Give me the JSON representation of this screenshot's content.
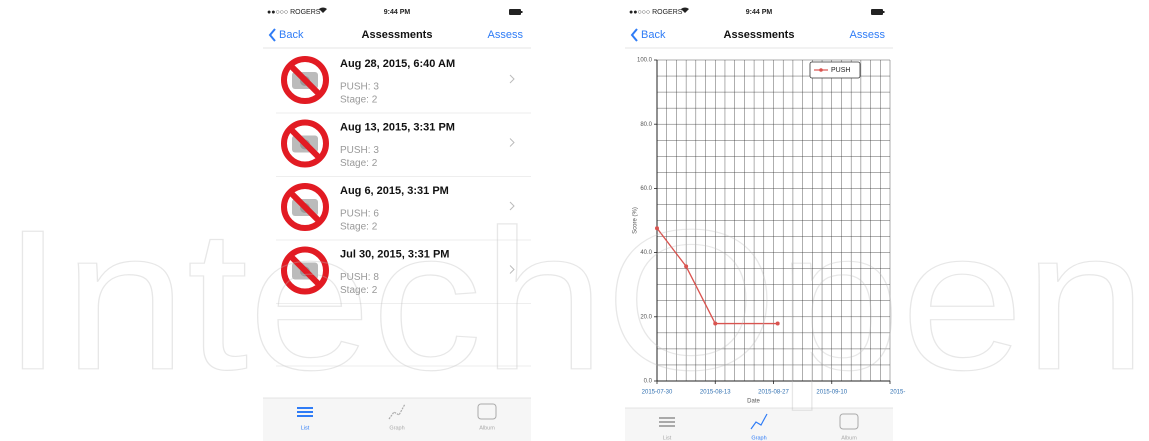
{
  "watermark": "IntechOpen",
  "left_screen": {
    "status": {
      "carrier": "●●○○○ ROGERS",
      "time": "9:44 PM"
    },
    "nav": {
      "back": "Back",
      "title": "Assessments",
      "action": "Assess"
    },
    "items": [
      {
        "date": "Aug 28, 2015, 6:40 AM",
        "score": "PUSH: 3",
        "stage": "Stage: 2"
      },
      {
        "date": "Aug 13, 2015, 3:31 PM",
        "score": "PUSH: 3",
        "stage": "Stage: 2"
      },
      {
        "date": "Aug 6, 2015, 3:31 PM",
        "score": "PUSH: 6",
        "stage": "Stage: 2"
      },
      {
        "date": "Jul 30, 2015, 3:31 PM",
        "score": "PUSH: 8",
        "stage": "Stage: 2"
      }
    ],
    "tabs": [
      "List",
      "Graph",
      "Album"
    ]
  },
  "right_screen": {
    "status": {
      "carrier": "●●○○○ ROGERS",
      "time": "9:44 PM"
    },
    "nav": {
      "back": "Back",
      "title": "Assessments",
      "action": "Assess"
    },
    "tabs": [
      "List",
      "Graph",
      "Album"
    ]
  },
  "chart_data": {
    "type": "line",
    "x_label": "Date",
    "y_label": "Score (%)",
    "x": [
      "2015-07-30",
      "2015-08-06",
      "2015-08-13",
      "2015-08-28"
    ],
    "series": [
      {
        "name": "PUSH",
        "color": "#d9534f",
        "values": [
          47.6,
          35.7,
          17.9,
          17.9
        ]
      }
    ],
    "xlim": [
      "2015-07-30",
      "2015-09-24"
    ],
    "xticks": [
      "2015-07-30",
      "2015-08-13",
      "2015-08-27",
      "2015-09-10",
      {
        "value": "2015-09-24",
        "label": "2015-"
      }
    ],
    "ylim": [
      0,
      100
    ],
    "yticks": [
      {
        "value": 0,
        "label": "0.0"
      },
      {
        "value": 20,
        "label": "20.0"
      },
      {
        "value": 40,
        "label": "40.0"
      },
      {
        "value": 60,
        "label": "60.0"
      },
      {
        "value": 80,
        "label": "80.0"
      },
      {
        "value": 100,
        "label": "100.0"
      }
    ],
    "grid": true,
    "legend": "upper right"
  }
}
